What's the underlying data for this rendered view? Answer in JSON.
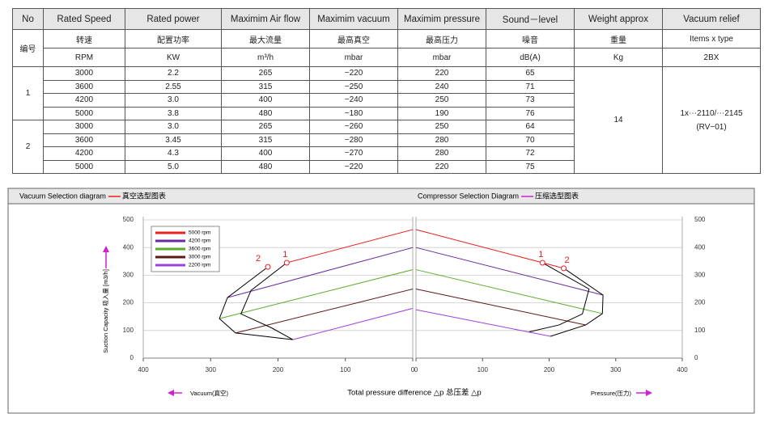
{
  "table": {
    "header": [
      "No",
      "Rated Speed",
      "Rated power",
      "Maximim Air flow",
      "Maximim vacuum",
      "Maximim pressure",
      "Sound－level",
      "Weight approx",
      "Vacuum relief"
    ],
    "subheader": [
      "编号",
      "转速",
      "配置功率",
      "最大流量",
      "最高真空",
      "最高压力",
      "噪音",
      "重量",
      "Items x type"
    ],
    "units": [
      "RPM",
      "KW",
      "m³/h",
      "mbar",
      "mbar",
      "dB(A)",
      "Kg",
      "2BX"
    ],
    "groups": [
      {
        "no": "1",
        "rows": [
          [
            "3000",
            "2.2",
            "265",
            "−220",
            "220",
            "65"
          ],
          [
            "3600",
            "2.55",
            "315",
            "−250",
            "240",
            "71"
          ],
          [
            "4200",
            "3.0",
            "400",
            "−240",
            "250",
            "73"
          ],
          [
            "5000",
            "3.8",
            "480",
            "−180",
            "190",
            "76"
          ]
        ]
      },
      {
        "no": "2",
        "rows": [
          [
            "3000",
            "3.0",
            "265",
            "−260",
            "250",
            "64"
          ],
          [
            "3600",
            "3.45",
            "315",
            "−280",
            "280",
            "70"
          ],
          [
            "4200",
            "4.3",
            "400",
            "−270",
            "280",
            "72"
          ],
          [
            "5000",
            "5.0",
            "480",
            "−220",
            "220",
            "75"
          ]
        ]
      }
    ],
    "weight": "14",
    "relief": [
      "1x⋯2110/⋯2145",
      "(RV−01)"
    ]
  },
  "chart_data": [
    {
      "type": "line",
      "title": "Vacuum Selection diagram",
      "subtitle": "真空选型图表",
      "title_dash_color": "#e8201e",
      "ylabel": "Suction Capacity 吸入量 [m3/h]",
      "xlabel": "Total pressure difference △p 总压差 △p",
      "direction_label": "Vacuum(真空)",
      "xlim": [
        400,
        0
      ],
      "ylim": [
        0,
        500
      ],
      "xticks": [
        400,
        300,
        200,
        100,
        0
      ],
      "yticks": [
        0,
        100,
        200,
        300,
        400,
        500
      ],
      "grid": true,
      "legend": "upper left",
      "y_axis_side": "left",
      "series": [
        {
          "name": "5000 rpm",
          "color": "#e8201e",
          "x": [
            0,
            187
          ],
          "y": [
            465,
            345
          ]
        },
        {
          "name": "4200 rpm",
          "color": "#6a2aa0",
          "x": [
            0,
            275
          ],
          "y": [
            400,
            219
          ]
        },
        {
          "name": "3600 rpm",
          "color": "#5aac2a",
          "x": [
            0,
            287
          ],
          "y": [
            320,
            143
          ]
        },
        {
          "name": "3000 rpm",
          "color": "#5c1a14",
          "x": [
            0,
            263
          ],
          "y": [
            250,
            91
          ]
        },
        {
          "name": "2200 rpm",
          "color": "#a040e0",
          "x": [
            0,
            178
          ],
          "y": [
            180,
            67
          ]
        }
      ],
      "outlines": [
        {
          "color": "#000000",
          "x": [
            215,
            275,
            287,
            263,
            178
          ],
          "y": [
            330,
            219,
            143,
            91,
            67
          ]
        },
        {
          "color": "#000000",
          "x": [
            187,
            240,
            255,
            210,
            178
          ],
          "y": [
            345,
            245,
            160,
            110,
            67
          ]
        }
      ],
      "points": [
        {
          "label": "1",
          "color": "#e8201e",
          "x": 187,
          "y": 345
        },
        {
          "label": "2",
          "color": "#e8201e",
          "x": 215,
          "y": 330
        }
      ]
    },
    {
      "type": "line",
      "title": "Compressor Selection Diagram",
      "subtitle": "压缩选型图表",
      "title_dash_color": "#d020d0",
      "direction_label": "Pressure(压力)",
      "xlim": [
        0,
        400
      ],
      "ylim": [
        0,
        500
      ],
      "xticks": [
        0,
        100,
        200,
        300,
        400
      ],
      "yticks": [
        0,
        100,
        200,
        300,
        400,
        500
      ],
      "grid": true,
      "y_axis_side": "right",
      "series": [
        {
          "color": "#e8201e",
          "x": [
            0,
            222
          ],
          "y": [
            465,
            325
          ]
        },
        {
          "color": "#6a2aa0",
          "x": [
            0,
            281
          ],
          "y": [
            400,
            228
          ]
        },
        {
          "color": "#5aac2a",
          "x": [
            0,
            280
          ],
          "y": [
            320,
            161
          ]
        },
        {
          "color": "#5c1a14",
          "x": [
            0,
            255
          ],
          "y": [
            250,
            120
          ]
        },
        {
          "color": "#a040e0",
          "x": [
            0,
            202
          ],
          "y": [
            175,
            79
          ]
        }
      ],
      "outlines": [
        {
          "color": "#000000",
          "x": [
            222,
            281,
            280,
            255,
            202
          ],
          "y": [
            325,
            228,
            161,
            120,
            79
          ]
        },
        {
          "color": "#000000",
          "x": [
            190,
            260,
            250,
            215,
            170
          ],
          "y": [
            345,
            250,
            160,
            120,
            95
          ]
        }
      ],
      "points": [
        {
          "label": "1",
          "color": "#e8201e",
          "x": 190,
          "y": 345
        },
        {
          "label": "2",
          "color": "#e8201e",
          "x": 222,
          "y": 325
        }
      ]
    }
  ]
}
